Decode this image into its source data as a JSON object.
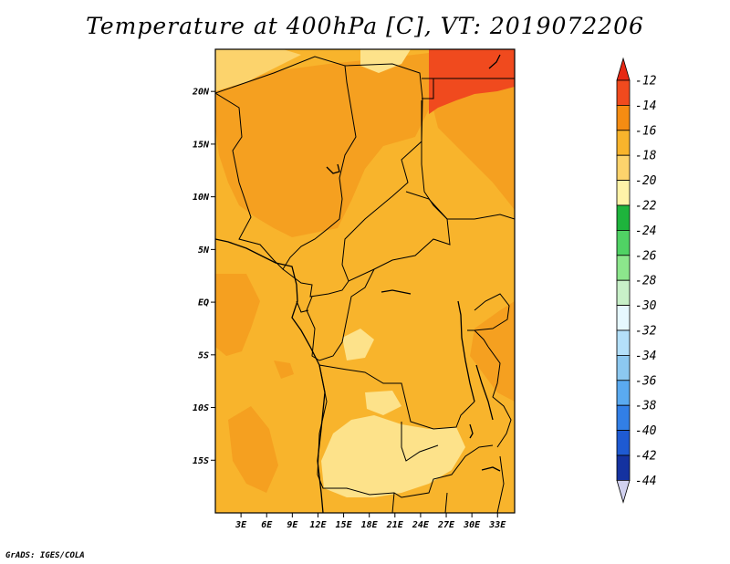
{
  "title": "Temperature at 400hPa [C], VT: 2019072206",
  "credit": "GrADS: IGES/COLA",
  "lat_labels": [
    "20N",
    "15N",
    "10N",
    "5N",
    "EQ",
    "5S",
    "10S",
    "15S"
  ],
  "lon_labels": [
    "3E",
    "6E",
    "9E",
    "12E",
    "15E",
    "18E",
    "21E",
    "24E",
    "27E",
    "30E",
    "33E"
  ],
  "colorbar": {
    "labels": [
      "-12",
      "-14",
      "-16",
      "-18",
      "-20",
      "-22",
      "-24",
      "-26",
      "-28",
      "-30",
      "-32",
      "-34",
      "-36",
      "-38",
      "-40",
      "-42",
      "-44"
    ],
    "colors": [
      "#f04a1e",
      "#f58c12",
      "#f8b42c",
      "#fcd36c",
      "#fff3a8",
      "#1eb43c",
      "#50d264",
      "#8ce68c",
      "#c8f0c8",
      "#e6f8ff",
      "#b4e0fa",
      "#8cc8f0",
      "#5aaaf0",
      "#327fe6",
      "#1e5ad2",
      "#1432a0",
      "#0a145a",
      "#d2d2f0"
    ],
    "top_arrow_color": "#e62814",
    "bottom_arrow_color": "#d2d2f0"
  },
  "map": {
    "lon_range": [
      0,
      35
    ],
    "lat_range": [
      -20,
      24
    ],
    "base_color": "#f8b42c",
    "features": [
      {
        "name": "sahara-warm-region",
        "color": "#f5a020"
      },
      {
        "name": "north-east-hot-region",
        "color": "#f04a1e"
      },
      {
        "name": "angola-cool-region",
        "color": "#fde28a"
      },
      {
        "name": "north-west-cool-region",
        "color": "#fcd36c"
      }
    ]
  }
}
